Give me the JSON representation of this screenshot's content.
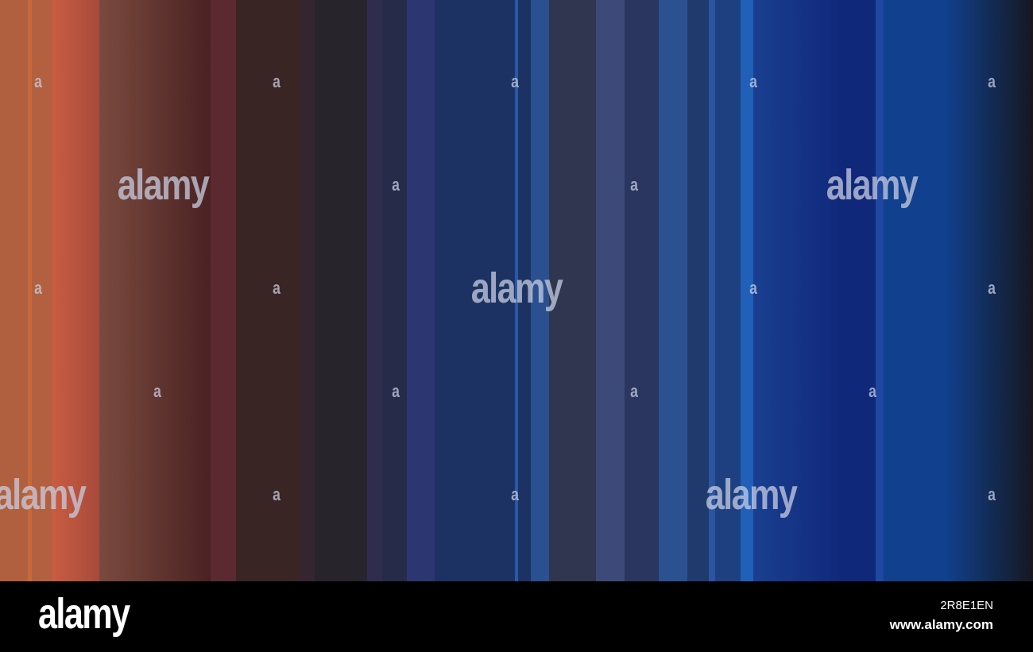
{
  "watermarks": [
    "alamy",
    "alamy",
    "alamy",
    "alamy",
    "alamy"
  ],
  "small_marks": [
    "a",
    "a",
    "a",
    "a",
    "a",
    "a",
    "a",
    "a",
    "a",
    "a",
    "a",
    "a",
    "a",
    "a",
    "a",
    "a",
    "a",
    "a"
  ],
  "footer": {
    "logo": "alamy",
    "image_id": "2R8E1EN",
    "url": "www.alamy.com"
  }
}
